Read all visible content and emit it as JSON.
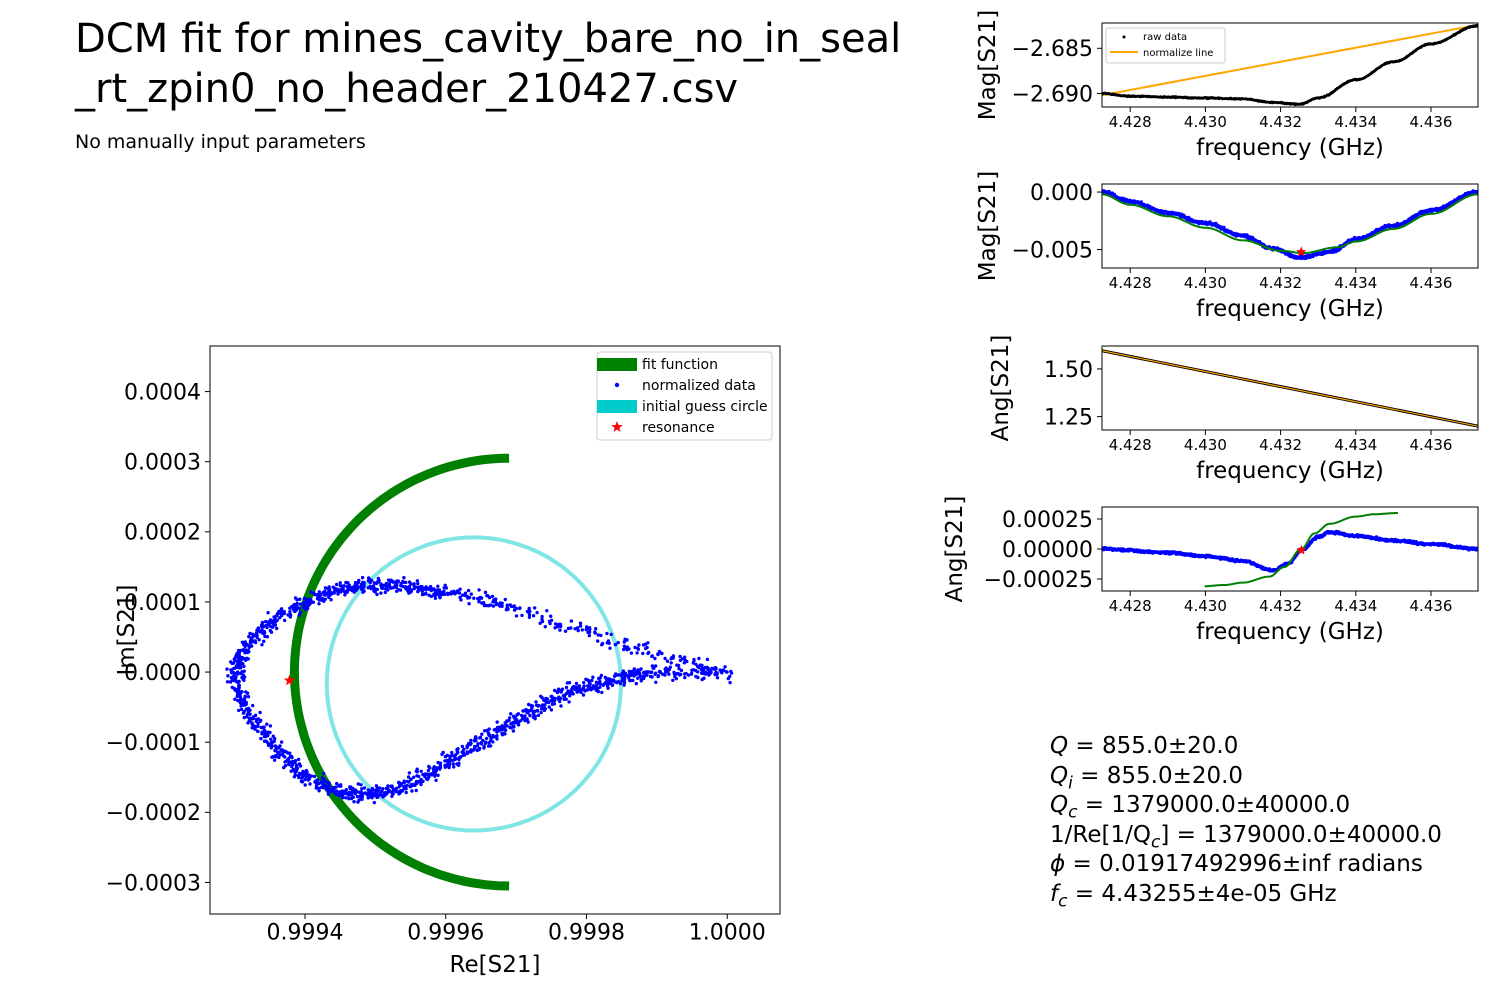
{
  "title_line1": "DCM fit for mines_cavity_bare_no_in_seal",
  "title_line2": "_rt_zpin0_no_header_210427.csv",
  "subtitle": "No manually input parameters",
  "results": [
    {
      "name": "Q",
      "sub": "",
      "value": " = 855.0±20.0"
    },
    {
      "name": "Q",
      "sub": "i",
      "value": " = 855.0±20.0"
    },
    {
      "name": "Q",
      "sub": "c",
      "value": " = 1379000.0±40000.0"
    },
    {
      "name": "1/Re[1/Q",
      "sub": "c",
      "value": "] = 1379000.0±40000.0"
    },
    {
      "name": "ϕ",
      "sub": "",
      "value": " = 0.01917492996±inf radians"
    },
    {
      "name": "f",
      "sub": "c",
      "value": " = 4.43255±4e-05 GHz"
    }
  ],
  "colors": {
    "fit": "#008000",
    "data": "#0000ff",
    "guess": "#00cccc",
    "resonance": "#ff0000",
    "raw": "#000000",
    "normalize": "#ffa500"
  },
  "chart_data": [
    {
      "id": "circle",
      "type": "scatter",
      "xlabel": "Re[S21]",
      "ylabel": "Im[S21]",
      "xlim": [
        0.999265,
        1.000075
      ],
      "ylim": [
        -0.000345,
        0.000465
      ],
      "xticks": [
        0.9994,
        0.9996,
        0.9998,
        1.0
      ],
      "xtick_labels": [
        "0.9994",
        "0.9996",
        "0.9998",
        "1.0000"
      ],
      "yticks": [
        -0.0003,
        -0.0002,
        -0.0001,
        0.0,
        0.0001,
        0.0002,
        0.0003,
        0.0004
      ],
      "ytick_labels": [
        "−0.0003",
        "−0.0002",
        "−0.0001",
        "0.0000",
        "0.0001",
        "0.0002",
        "0.0003",
        "0.0004"
      ],
      "legend_position": "top-right",
      "legend": [
        "fit function",
        "normalized data",
        "initial guess circle",
        "resonance"
      ],
      "fit_circle": {
        "center": [
          0.99969,
          0.0
        ],
        "radius": 0.000305
      },
      "guess_circle": {
        "center": [
          0.99964,
          -1.7e-05
        ],
        "radius": 0.000209
      },
      "resonance": [
        0.999378,
        -1.2e-05
      ],
      "data_path": [
        [
          1.0,
          0.0
        ],
        [
          0.99985,
          4e-05
        ],
        [
          0.9997,
          9e-05
        ],
        [
          0.9996,
          0.000115
        ],
        [
          0.99955,
          0.00012
        ],
        [
          0.9995,
          0.000125
        ],
        [
          0.99945,
          0.00012
        ],
        [
          0.9994,
          0.0001
        ],
        [
          0.99935,
          7e-05
        ],
        [
          0.99931,
          3e-05
        ],
        [
          0.9993,
          -1e-05
        ],
        [
          0.99932,
          -6e-05
        ],
        [
          0.99936,
          -0.00011
        ],
        [
          0.9994,
          -0.00015
        ],
        [
          0.99945,
          -0.00017
        ],
        [
          0.9995,
          -0.000175
        ],
        [
          0.99955,
          -0.00016
        ],
        [
          0.9996,
          -0.00013
        ],
        [
          0.99965,
          -0.0001
        ],
        [
          0.9997,
          -7e-05
        ],
        [
          0.99975,
          -4e-05
        ],
        [
          0.9998,
          -2e-05
        ],
        [
          0.99985,
          -1e-05
        ],
        [
          0.9999,
          0.0
        ],
        [
          1.0,
          0.0
        ]
      ]
    },
    {
      "id": "mag-raw",
      "type": "line",
      "xlabel": "frequency (GHz)",
      "ylabel": "Mag[S21]",
      "xlim": [
        4.42725,
        4.43725
      ],
      "ylim": [
        -2.6915,
        -2.6822
      ],
      "xticks": [
        4.428,
        4.43,
        4.432,
        4.434,
        4.436
      ],
      "xtick_labels": [
        "4.428",
        "4.430",
        "4.432",
        "4.434",
        "4.436"
      ],
      "yticks": [
        -2.69,
        -2.685
      ],
      "ytick_labels": [
        "−2.690",
        "−2.685"
      ],
      "legend_position": "top-left",
      "legend": [
        "raw data",
        "normalize line"
      ],
      "normalize_line": [
        [
          4.42725,
          -2.6902
        ],
        [
          4.43725,
          -2.6824
        ]
      ],
      "raw_curve": [
        [
          4.42725,
          -2.69
        ],
        [
          4.428,
          -2.6903
        ],
        [
          4.429,
          -2.6904
        ],
        [
          4.43,
          -2.6905
        ],
        [
          4.431,
          -2.6906
        ],
        [
          4.4318,
          -2.691
        ],
        [
          4.4325,
          -2.6912
        ],
        [
          4.433,
          -2.6905
        ],
        [
          4.434,
          -2.6885
        ],
        [
          4.435,
          -2.6865
        ],
        [
          4.436,
          -2.6845
        ],
        [
          4.43725,
          -2.6825
        ]
      ]
    },
    {
      "id": "mag-norm",
      "type": "line",
      "xlabel": "frequency (GHz)",
      "ylabel": "Mag[S21]",
      "xlim": [
        4.42725,
        4.43725
      ],
      "ylim": [
        -0.0066,
        0.0007
      ],
      "xticks": [
        4.428,
        4.43,
        4.432,
        4.434,
        4.436
      ],
      "xtick_labels": [
        "4.428",
        "4.430",
        "4.432",
        "4.434",
        "4.436"
      ],
      "yticks": [
        -0.005,
        0.0
      ],
      "ytick_labels": [
        "−0.005",
        "0.000"
      ],
      "resonance": [
        4.43255,
        -0.0052
      ],
      "data_curve": [
        [
          4.42725,
          0.0
        ],
        [
          4.428,
          -0.0008
        ],
        [
          4.429,
          -0.0018
        ],
        [
          4.43,
          -0.0027
        ],
        [
          4.431,
          -0.0038
        ],
        [
          4.4318,
          -0.0049
        ],
        [
          4.4325,
          -0.0057
        ],
        [
          4.4333,
          -0.0052
        ],
        [
          4.434,
          -0.0041
        ],
        [
          4.435,
          -0.0029
        ],
        [
          4.436,
          -0.0016
        ],
        [
          4.43725,
          0.0
        ]
      ],
      "fit_curve": [
        [
          4.42725,
          -0.0002
        ],
        [
          4.428,
          -0.0011
        ],
        [
          4.429,
          -0.0021
        ],
        [
          4.43,
          -0.0031
        ],
        [
          4.431,
          -0.0042
        ],
        [
          4.432,
          -0.0051
        ],
        [
          4.4326,
          -0.0053
        ],
        [
          4.4335,
          -0.0048
        ],
        [
          4.434,
          -0.0043
        ],
        [
          4.435,
          -0.0032
        ],
        [
          4.436,
          -0.0019
        ],
        [
          4.43725,
          -0.0002
        ]
      ]
    },
    {
      "id": "ang-raw",
      "type": "line",
      "xlabel": "frequency (GHz)",
      "ylabel": "Ang[S21]",
      "xlim": [
        4.42725,
        4.43725
      ],
      "ylim": [
        1.18,
        1.62
      ],
      "xticks": [
        4.428,
        4.43,
        4.432,
        4.434,
        4.436
      ],
      "xtick_labels": [
        "4.428",
        "4.430",
        "4.432",
        "4.434",
        "4.436"
      ],
      "yticks": [
        1.25,
        1.5
      ],
      "ytick_labels": [
        "1.25",
        "1.50"
      ],
      "line": [
        [
          4.42725,
          1.595
        ],
        [
          4.43725,
          1.2
        ]
      ]
    },
    {
      "id": "ang-norm",
      "type": "line",
      "xlabel": "frequency (GHz)",
      "ylabel": "Ang[S21]",
      "xlim": [
        4.42725,
        4.43725
      ],
      "ylim": [
        -0.00035,
        0.00035
      ],
      "xticks": [
        4.428,
        4.43,
        4.432,
        4.434,
        4.436
      ],
      "xtick_labels": [
        "4.428",
        "4.430",
        "4.432",
        "4.434",
        "4.436"
      ],
      "yticks": [
        -0.00025,
        0.0,
        0.00025
      ],
      "ytick_labels": [
        "−0.00025",
        "0.00000",
        "0.00025"
      ],
      "resonance": [
        4.43255,
        -1e-05
      ],
      "data_curve": [
        [
          4.42725,
          0.0
        ],
        [
          4.429,
          -3e-05
        ],
        [
          4.43,
          -6e-05
        ],
        [
          4.431,
          -0.0001
        ],
        [
          4.4318,
          -0.00018
        ],
        [
          4.4322,
          -0.00012
        ],
        [
          4.43255,
          -1e-05
        ],
        [
          4.433,
          0.0001
        ],
        [
          4.4333,
          0.00014
        ],
        [
          4.434,
          0.00011
        ],
        [
          4.435,
          7e-05
        ],
        [
          4.436,
          4e-05
        ],
        [
          4.43725,
          0.0
        ]
      ],
      "fit_curve": [
        [
          4.42998,
          -0.00031
        ],
        [
          4.4305,
          -0.0003
        ],
        [
          4.431,
          -0.00028
        ],
        [
          4.4317,
          -0.00023
        ],
        [
          4.4321,
          -0.00015
        ],
        [
          4.43255,
          0.0
        ],
        [
          4.4329,
          0.00013
        ],
        [
          4.4333,
          0.00021
        ],
        [
          4.434,
          0.00027
        ],
        [
          4.4345,
          0.00029
        ],
        [
          4.43512,
          0.0003
        ]
      ]
    }
  ]
}
